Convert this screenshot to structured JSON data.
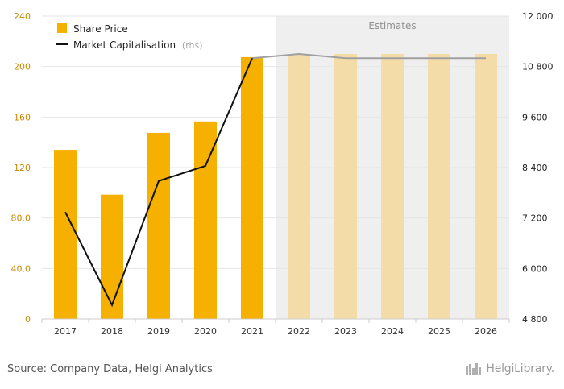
{
  "chart_data": {
    "type": "bar",
    "categories": [
      "2017",
      "2018",
      "2019",
      "2020",
      "2021",
      "2022",
      "2023",
      "2024",
      "2025",
      "2026"
    ],
    "estimates_start_index": 5,
    "estimates_label": "Estimates",
    "series": [
      {
        "name": "Share Price",
        "type": "bar",
        "axis": "left",
        "color": "#f5b000",
        "estimate_color": "#f3dca8",
        "values": [
          134,
          98.5,
          147.5,
          156.5,
          207.5,
          210,
          210,
          210,
          210,
          210
        ]
      },
      {
        "name": "Market Capitalisation",
        "name_suffix": "(rhs)",
        "type": "line",
        "axis": "right",
        "color": "#111111",
        "estimate_color": "#a0a0a0",
        "values": [
          7340,
          5130,
          8080,
          8440,
          11000,
          11100,
          11000,
          11000,
          11000,
          11000
        ]
      }
    ],
    "y_left": {
      "min": 0,
      "max": 240,
      "ticks": [
        "0",
        "40.0",
        "80.0",
        "120",
        "160",
        "200",
        "240"
      ]
    },
    "y_right": {
      "min": 4800,
      "max": 12000,
      "ticks": [
        "4 800",
        "6 000",
        "7 200",
        "8 400",
        "9 600",
        "10 800",
        "12 000"
      ]
    },
    "grid": true,
    "legend_position": "top-left"
  },
  "footer": {
    "source": "Source: Company Data, Helgi Analytics",
    "brand": "HelgiLibrary."
  }
}
